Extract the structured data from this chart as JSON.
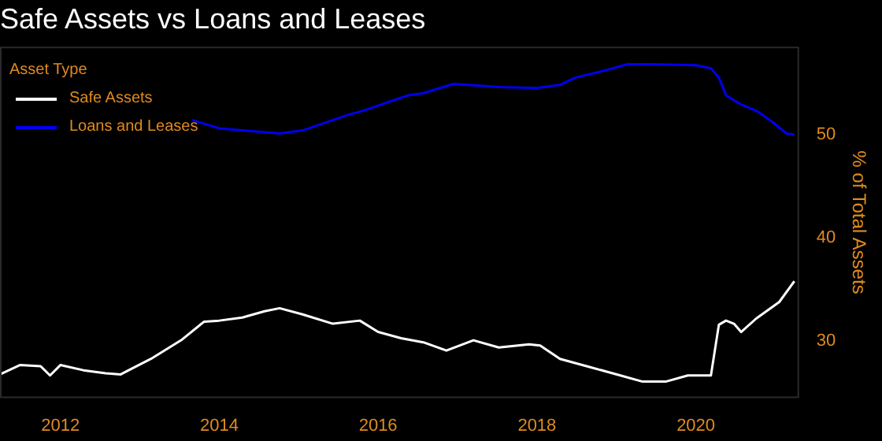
{
  "chart_data": {
    "type": "line",
    "title": "Safe Assets vs Loans and Leases",
    "ylabel": "% of Total Assets",
    "legend_title": "Asset Type",
    "legend": "top left",
    "grid": false,
    "line_style": "solid",
    "marker": "none",
    "xlim": [
      2011.24,
      2021.3
    ],
    "xticks": [
      2012,
      2014,
      2016,
      2018,
      2020
    ],
    "ylim": [
      24.5,
      58.5
    ],
    "yticks": [
      30,
      40,
      50
    ],
    "series": [
      {
        "name": "Safe Assets",
        "color": "#ffffff",
        "x": [
          2011.24,
          2011.49,
          2011.75,
          2011.87,
          2012,
          2012.29,
          2012.57,
          2012.76,
          2012.86,
          2013.14,
          2013.52,
          2013.81,
          2014,
          2014.29,
          2014.57,
          2014.76,
          2015.05,
          2015.43,
          2015.77,
          2016,
          2016.29,
          2016.57,
          2016.86,
          2017.2,
          2017.52,
          2017.9,
          2018.04,
          2018.29,
          2018.67,
          2019.05,
          2019.33,
          2019.62,
          2019.9,
          2020.19,
          2020.29,
          2020.38,
          2020.48,
          2020.57,
          2020.76,
          2021.05,
          2021.24
        ],
        "values": [
          26.8,
          27.7,
          27.6,
          26.7,
          27.7,
          27.2,
          26.9,
          26.8,
          27.2,
          28.3,
          30.1,
          31.9,
          32.0,
          32.3,
          32.9,
          33.2,
          32.6,
          31.7,
          32.0,
          30.9,
          30.3,
          29.9,
          29.1,
          30.1,
          29.4,
          29.7,
          29.6,
          28.3,
          27.5,
          26.7,
          26.1,
          26.1,
          26.7,
          26.7,
          31.6,
          32.0,
          31.7,
          30.9,
          32.2,
          33.8,
          35.8
        ]
      },
      {
        "name": "Loans and Leases",
        "color": "#0000ee",
        "x": [
          2013.66,
          2014,
          2014.76,
          2015.05,
          2015.62,
          2015.81,
          2016.38,
          2016.57,
          2016.95,
          2017.52,
          2018,
          2018.29,
          2018.48,
          2018.86,
          2019.14,
          2019.43,
          2020,
          2020.19,
          2020.29,
          2020.38,
          2020.57,
          2020.76,
          2020.95,
          2021.14,
          2021.24
        ],
        "values": [
          51.4,
          50.6,
          50.1,
          50.4,
          51.9,
          52.3,
          53.8,
          54.0,
          54.9,
          54.6,
          54.5,
          54.8,
          55.5,
          56.2,
          56.8,
          56.8,
          56.7,
          56.4,
          55.5,
          53.8,
          52.9,
          52.3,
          51.3,
          50.1,
          50.0
        ]
      }
    ]
  }
}
